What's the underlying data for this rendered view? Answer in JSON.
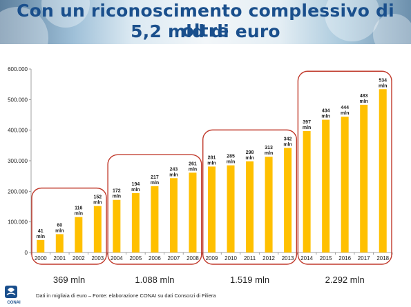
{
  "title": {
    "line1": "Con un riconoscimento complessivo di oltre",
    "line2": "5,2 mld di euro"
  },
  "footer": {
    "note": "Dati in migliaia di euro – Fonte: elaborazione CONAI su dati Consorzi di Filiera",
    "logo_text": "CONAI"
  },
  "colors": {
    "bar": "#ffc000",
    "group_outline": "#c0392b",
    "title": "#1a4f8c"
  },
  "chart_data": {
    "type": "bar",
    "categories": [
      "2000",
      "2001",
      "2002",
      "2003",
      "2004",
      "2005",
      "2006",
      "2007",
      "2008",
      "2009",
      "2010",
      "2011",
      "2012",
      "2013",
      "2014",
      "2015",
      "2016",
      "2017",
      "2018"
    ],
    "values": [
      41,
      60,
      116,
      152,
      172,
      194,
      217,
      243,
      261,
      281,
      285,
      298,
      313,
      342,
      397,
      434,
      444,
      483,
      534
    ],
    "value_labels": [
      "41",
      "60",
      "116",
      "152",
      "172",
      "194",
      "217",
      "243",
      "261",
      "281",
      "285",
      "298",
      "313",
      "342",
      "397",
      "434",
      "444",
      "483",
      "534"
    ],
    "value_unit": "mln",
    "ylim": [
      0,
      600
    ],
    "yticks": [
      0,
      100,
      200,
      300,
      400,
      500,
      600
    ],
    "ytick_labels": [
      "0",
      "100.000",
      "200.000",
      "300.000",
      "400.000",
      "500.000",
      "600.000"
    ],
    "grid": false,
    "groups": [
      {
        "start": "2000",
        "end": "2003",
        "total": "369 mln"
      },
      {
        "start": "2004",
        "end": "2008",
        "total": "1.088 mln"
      },
      {
        "start": "2009",
        "end": "2013",
        "total": "1.519 mln"
      },
      {
        "start": "2014",
        "end": "2018",
        "total": "2.292 mln"
      }
    ]
  }
}
